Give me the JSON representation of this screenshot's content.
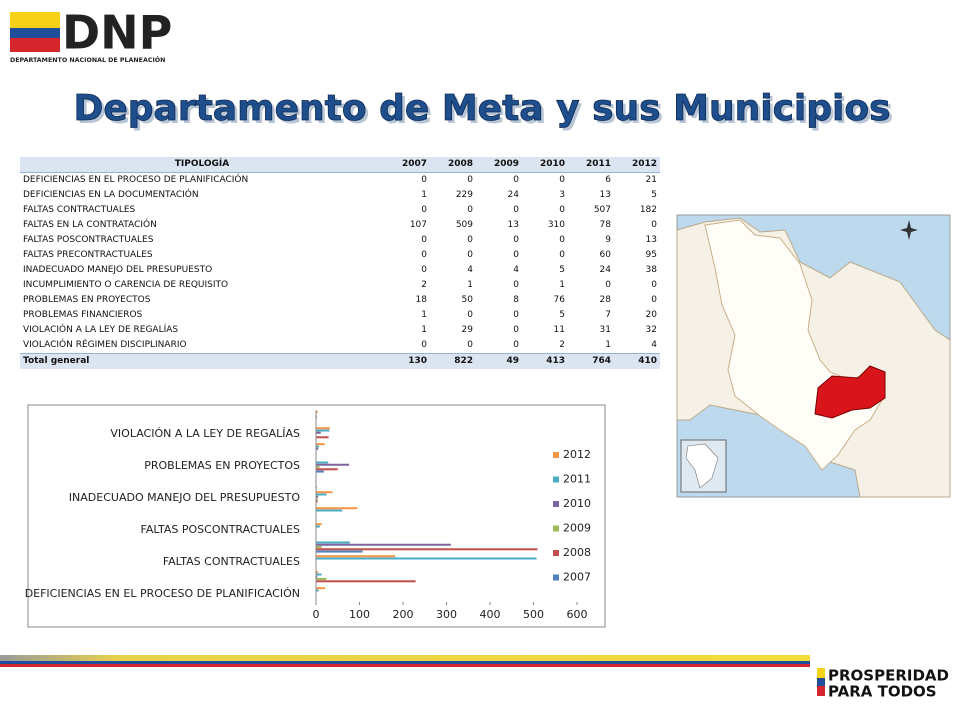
{
  "header": {
    "logo": "DNP",
    "logo_subtitle": "DEPARTAMENTO NACIONAL DE PLANEACIÓN"
  },
  "title": "Departamento de Meta y sus Municipios",
  "table": {
    "columns": [
      "TIPOLOGÍA",
      2007,
      2008,
      2009,
      2010,
      2011,
      2012
    ],
    "rows": [
      [
        "DEFICIENCIAS  EN EL PROCESO DE PLANIFICACIÓN",
        0,
        0,
        0,
        0,
        6,
        21
      ],
      [
        "DEFICIENCIAS  EN LA DOCUMENTACIÓN",
        1,
        229,
        24,
        3,
        13,
        5
      ],
      [
        "FALTAS CONTRACTUALES",
        0,
        0,
        0,
        0,
        507,
        182
      ],
      [
        "FALTAS EN LA CONTRATACIÓN",
        107,
        509,
        13,
        310,
        78,
        0
      ],
      [
        "FALTAS POSCONTRACTUALES",
        0,
        0,
        0,
        0,
        9,
        13
      ],
      [
        "FALTAS PRECONTRACTUALES",
        0,
        0,
        0,
        0,
        60,
        95
      ],
      [
        "INADECUADO  MANEJO DEL PRESUPUESTO",
        0,
        4,
        4,
        5,
        24,
        38
      ],
      [
        "INCUMPLIMIENTO  O CARENCIA DE REQUISITO",
        2,
        1,
        0,
        1,
        0,
        0
      ],
      [
        "PROBLEMAS EN PROYECTOS",
        18,
        50,
        8,
        76,
        28,
        0
      ],
      [
        "PROBLEMAS FINANCIEROS",
        1,
        0,
        0,
        5,
        7,
        20
      ],
      [
        "VIOLACIÓN A LA LEY DE REGALÍAS",
        1,
        29,
        0,
        11,
        31,
        32
      ],
      [
        "VIOLACIÓN RÉGIMEN  DISCIPLINARIO",
        0,
        0,
        0,
        2,
        1,
        4
      ]
    ],
    "total": [
      "Total general",
      130,
      822,
      49,
      413,
      764,
      410
    ]
  },
  "chart_data": {
    "type": "hbar",
    "categories": [
      "DEFICIENCIAS EN EL PROCESO DE PLANIFICACIÓN",
      null,
      "FALTAS CONTRACTUALES",
      null,
      "FALTAS POSCONTRACTUALES",
      null,
      "INADECUADO MANEJO DEL PRESUPUESTO",
      null,
      "PROBLEMAS EN PROYECTOS",
      null,
      "VIOLACIÓN A LA LEY DE REGALÍAS",
      null
    ],
    "series": [
      {
        "name": "2007",
        "color": "#4f81bd",
        "values": [
          0,
          1,
          0,
          107,
          0,
          0,
          0,
          2,
          18,
          1,
          1,
          0
        ]
      },
      {
        "name": "2008",
        "color": "#c0504d",
        "values": [
          0,
          229,
          0,
          509,
          0,
          0,
          4,
          1,
          50,
          0,
          29,
          0
        ]
      },
      {
        "name": "2009",
        "color": "#9bbb59",
        "values": [
          0,
          24,
          0,
          13,
          0,
          0,
          4,
          0,
          8,
          0,
          0,
          0
        ]
      },
      {
        "name": "2010",
        "color": "#8064a2",
        "values": [
          0,
          3,
          0,
          310,
          0,
          0,
          5,
          1,
          76,
          5,
          11,
          2
        ]
      },
      {
        "name": "2011",
        "color": "#4bacc6",
        "values": [
          6,
          13,
          507,
          78,
          9,
          60,
          24,
          0,
          28,
          7,
          31,
          1
        ]
      },
      {
        "name": "2012",
        "color": "#f79646",
        "values": [
          21,
          5,
          182,
          0,
          13,
          95,
          38,
          0,
          0,
          20,
          32,
          4
        ]
      }
    ],
    "xlim": [
      0,
      600
    ],
    "xticks": [
      0,
      100,
      200,
      300,
      400,
      500,
      600
    ],
    "grid": false,
    "legend": "right"
  },
  "footer": {
    "brand_line1": "PROSPERIDAD",
    "brand_line2": "PARA TODOS"
  }
}
